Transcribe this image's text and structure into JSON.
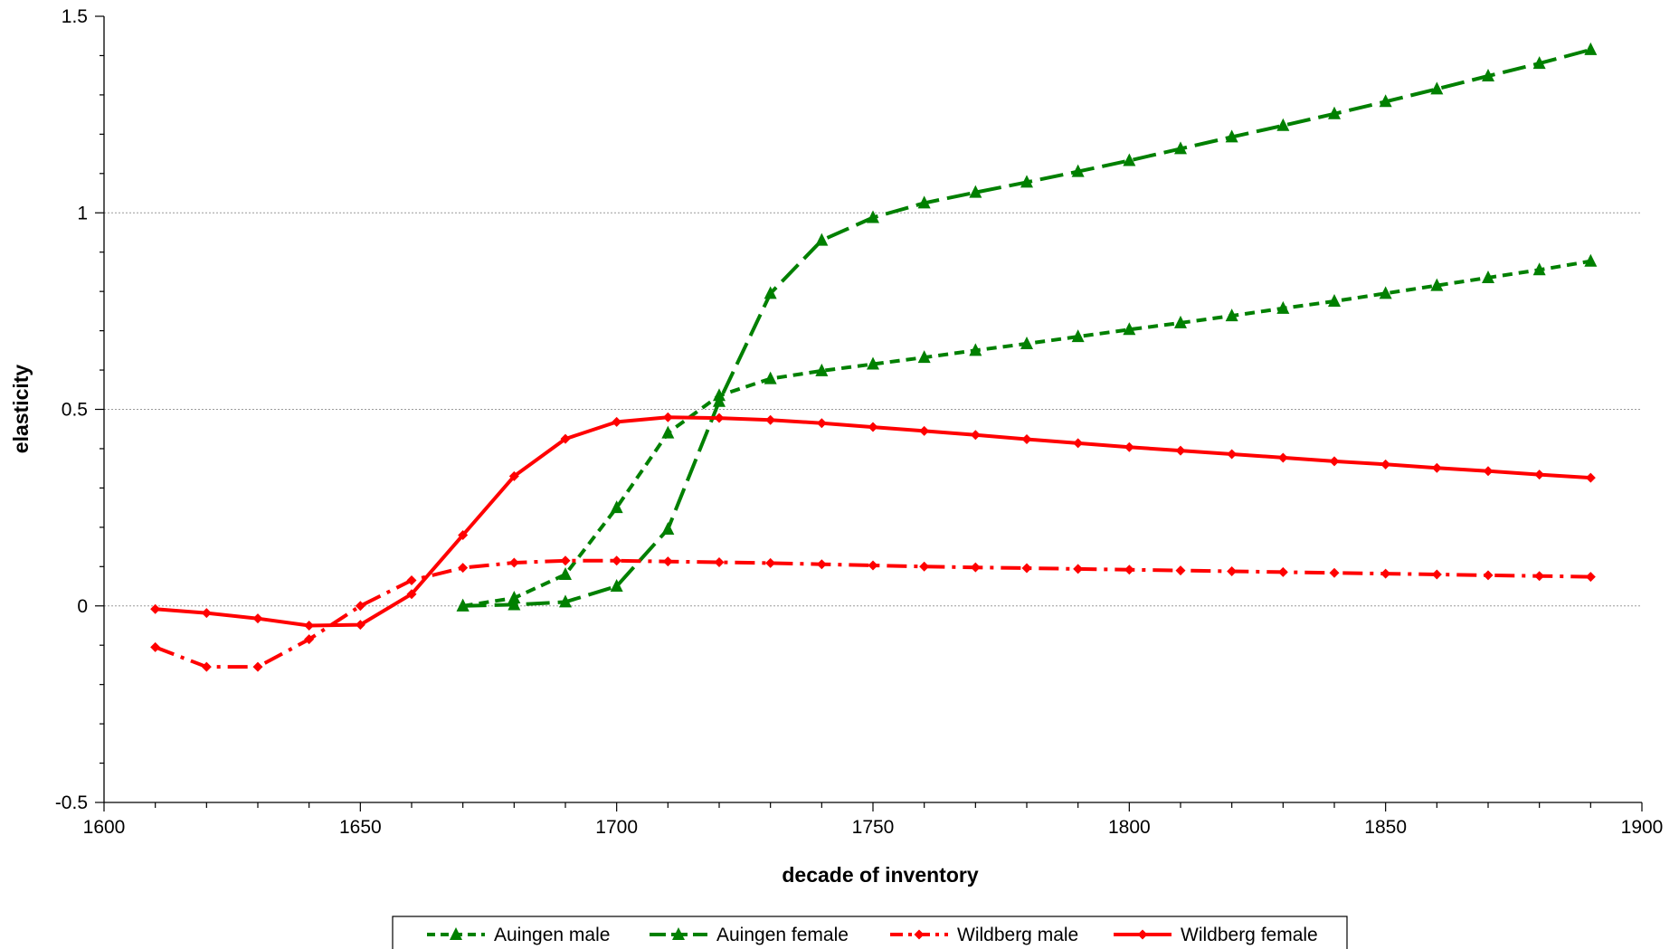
{
  "chart_data": {
    "type": "line",
    "title": "",
    "xlabel": "decade of inventory",
    "ylabel": "elasticity",
    "xlim": [
      1600,
      1900
    ],
    "ylim": [
      -0.5,
      1.5
    ],
    "x_ticks": [
      1600,
      1650,
      1700,
      1750,
      1800,
      1850,
      1900
    ],
    "y_ticks": [
      -0.5,
      0,
      0.5,
      1,
      1.5
    ],
    "y_tick_labels": [
      "-0.5",
      "0",
      "0.5",
      "1",
      "1.5"
    ],
    "grid": "horizontal dotted gridlines at 0, 0.5 and 1",
    "legend_position": "bottom",
    "series": [
      {
        "name": "Auingen male",
        "color": "#008000",
        "marker": "triangle",
        "dash": "short-dash",
        "x": [
          1670,
          1680,
          1690,
          1700,
          1710,
          1720,
          1730,
          1740,
          1750,
          1760,
          1770,
          1780,
          1790,
          1800,
          1810,
          1820,
          1830,
          1840,
          1850,
          1860,
          1870,
          1880,
          1890
        ],
        "y": [
          0.0,
          0.02,
          0.08,
          0.25,
          0.44,
          0.535,
          0.578,
          0.598,
          0.615,
          0.632,
          0.65,
          0.667,
          0.685,
          0.703,
          0.72,
          0.738,
          0.757,
          0.775,
          0.795,
          0.815,
          0.835,
          0.855,
          0.877
        ]
      },
      {
        "name": "Auingen female",
        "color": "#008000",
        "marker": "triangle",
        "dash": "long-dash",
        "x": [
          1670,
          1680,
          1690,
          1700,
          1710,
          1720,
          1730,
          1740,
          1750,
          1760,
          1770,
          1780,
          1790,
          1800,
          1810,
          1820,
          1830,
          1840,
          1850,
          1860,
          1870,
          1880,
          1890
        ],
        "y": [
          0.0,
          0.003,
          0.01,
          0.05,
          0.195,
          0.52,
          0.795,
          0.93,
          0.988,
          1.025,
          1.052,
          1.078,
          1.105,
          1.133,
          1.163,
          1.193,
          1.222,
          1.252,
          1.283,
          1.315,
          1.348,
          1.38,
          1.415
        ]
      },
      {
        "name": "Wildberg male",
        "color": "#ff0000",
        "marker": "diamond",
        "dash": "dash-dot",
        "x": [
          1610,
          1620,
          1630,
          1640,
          1650,
          1660,
          1670,
          1680,
          1690,
          1700,
          1710,
          1720,
          1730,
          1740,
          1750,
          1760,
          1770,
          1780,
          1790,
          1800,
          1810,
          1820,
          1830,
          1840,
          1850,
          1860,
          1870,
          1880,
          1890
        ],
        "y": [
          -0.105,
          -0.155,
          -0.155,
          -0.085,
          0.0,
          0.065,
          0.097,
          0.11,
          0.115,
          0.115,
          0.113,
          0.111,
          0.109,
          0.106,
          0.103,
          0.1,
          0.098,
          0.096,
          0.094,
          0.092,
          0.09,
          0.088,
          0.086,
          0.084,
          0.082,
          0.08,
          0.078,
          0.076,
          0.074
        ]
      },
      {
        "name": "Wildberg female",
        "color": "#ff0000",
        "marker": "diamond",
        "dash": "solid",
        "x": [
          1610,
          1620,
          1630,
          1640,
          1650,
          1660,
          1670,
          1680,
          1690,
          1700,
          1710,
          1720,
          1730,
          1740,
          1750,
          1760,
          1770,
          1780,
          1790,
          1800,
          1810,
          1820,
          1830,
          1840,
          1850,
          1860,
          1870,
          1880,
          1890
        ],
        "y": [
          -0.008,
          -0.018,
          -0.032,
          -0.05,
          -0.048,
          0.03,
          0.18,
          0.33,
          0.425,
          0.468,
          0.48,
          0.478,
          0.473,
          0.465,
          0.455,
          0.445,
          0.435,
          0.424,
          0.414,
          0.404,
          0.395,
          0.386,
          0.377,
          0.368,
          0.36,
          0.351,
          0.343,
          0.334,
          0.326
        ]
      }
    ]
  }
}
